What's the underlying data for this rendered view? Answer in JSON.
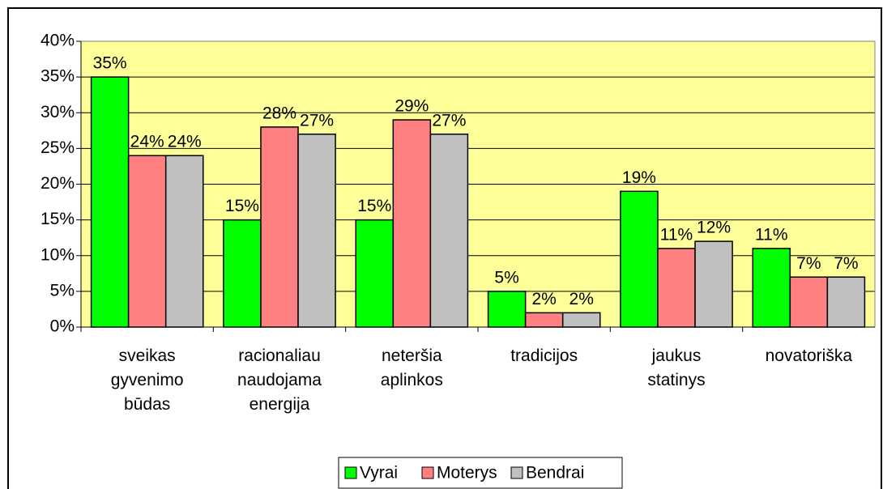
{
  "chart_data": {
    "type": "bar",
    "categories": [
      "sveikas gyvenimo būdas",
      "racionaliau naudojama energija",
      "neteršia aplinkos",
      "tradicijos",
      "jaukus statinys",
      "novatoriška"
    ],
    "series": [
      {
        "name": "Vyrai",
        "color": "#00ff00",
        "values": [
          35,
          15,
          15,
          5,
          19,
          11
        ],
        "value_labels": [
          "35%",
          "15%",
          "15%",
          "5%",
          "19%",
          "11%"
        ]
      },
      {
        "name": "Moterys",
        "color": "#ff8080",
        "values": [
          24,
          28,
          29,
          2,
          11,
          7
        ],
        "value_labels": [
          "24%",
          "28%",
          "29%",
          "2%",
          "11%",
          "7%"
        ]
      },
      {
        "name": "Bendrai",
        "color": "#c0c0c0",
        "values": [
          24,
          27,
          27,
          2,
          12,
          7
        ],
        "value_labels": [
          "24%",
          "27%",
          "27%",
          "2%",
          "12%",
          "7%"
        ]
      }
    ],
    "ylim": [
      0,
      40
    ],
    "yticks": [
      {
        "value": 0,
        "label": "0%"
      },
      {
        "value": 5,
        "label": "5%"
      },
      {
        "value": 10,
        "label": "10%"
      },
      {
        "value": 15,
        "label": "15%"
      },
      {
        "value": 20,
        "label": "20%"
      },
      {
        "value": 25,
        "label": "25%"
      },
      {
        "value": 30,
        "label": "30%"
      },
      {
        "value": 35,
        "label": "35%"
      },
      {
        "value": 40,
        "label": "40%"
      }
    ],
    "grid": true,
    "plot_background": "#ffff99",
    "legend": "bottom"
  }
}
